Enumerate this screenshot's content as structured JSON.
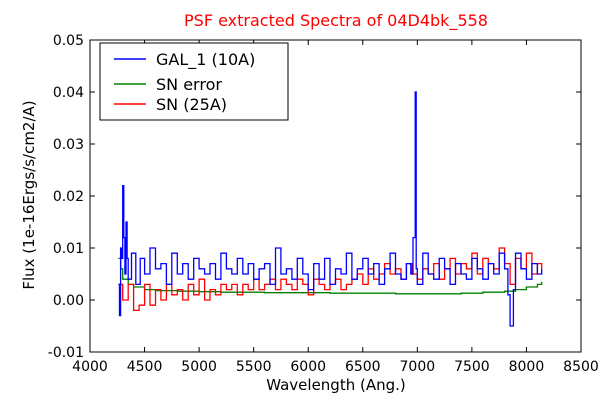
{
  "chart_data": {
    "type": "line",
    "title": "PSF extracted Spectra of 04D4bk_558",
    "title_color": "#ff0000",
    "xlabel": "Wavelength (Ang.)",
    "ylabel": "Flux (1e-16Ergs/s/cm2/A)",
    "xlim": [
      4000,
      8500
    ],
    "ylim": [
      -0.01,
      0.05
    ],
    "x_ticks": [
      4000,
      4500,
      5000,
      5500,
      6000,
      6500,
      7000,
      7500,
      8000,
      8500
    ],
    "y_ticks": [
      -0.01,
      0.0,
      0.01,
      0.02,
      0.03,
      0.04,
      0.05
    ],
    "x_tick_labels": [
      "4000",
      "4500",
      "5000",
      "5500",
      "6000",
      "6500",
      "7000",
      "7500",
      "8000",
      "8500"
    ],
    "y_tick_labels": [
      "-0.01",
      "0.00",
      "0.01",
      "0.02",
      "0.03",
      "0.04",
      "0.05"
    ],
    "grid": false,
    "legend_position": "top-left",
    "series": [
      {
        "name": "GAL_1 (10A)",
        "color": "#0000ff",
        "x": [
          4260,
          4270,
          4280,
          4290,
          4300,
          4310,
          4320,
          4330,
          4340,
          4350,
          4380,
          4420,
          4460,
          4500,
          4550,
          4600,
          4650,
          4700,
          4750,
          4800,
          4850,
          4900,
          4950,
          5000,
          5050,
          5100,
          5150,
          5200,
          5250,
          5300,
          5350,
          5400,
          5450,
          5500,
          5550,
          5600,
          5650,
          5700,
          5750,
          5800,
          5850,
          5900,
          5950,
          6000,
          6050,
          6100,
          6150,
          6200,
          6250,
          6300,
          6350,
          6400,
          6450,
          6500,
          6550,
          6600,
          6650,
          6700,
          6750,
          6800,
          6850,
          6900,
          6940,
          6960,
          6980,
          6990,
          7000,
          7050,
          7100,
          7150,
          7200,
          7250,
          7300,
          7350,
          7400,
          7450,
          7500,
          7550,
          7600,
          7650,
          7700,
          7750,
          7800,
          7830,
          7850,
          7880,
          7900,
          7950,
          8000,
          8050,
          8100,
          8140
        ],
        "y": [
          0.003,
          -0.003,
          0.01,
          0.008,
          0.022,
          0.012,
          0.005,
          0.015,
          0.008,
          0.004,
          0.009,
          0.003,
          0.008,
          0.005,
          0.01,
          0.006,
          0.007,
          0.003,
          0.009,
          0.005,
          0.007,
          0.004,
          0.008,
          0.006,
          0.005,
          0.007,
          0.004,
          0.009,
          0.006,
          0.005,
          0.008,
          0.005,
          0.007,
          0.004,
          0.006,
          0.007,
          0.003,
          0.01,
          0.005,
          0.006,
          0.004,
          0.008,
          0.005,
          0.002,
          0.007,
          0.004,
          0.008,
          0.003,
          0.006,
          0.005,
          0.009,
          0.004,
          0.006,
          0.008,
          0.005,
          0.007,
          0.003,
          0.006,
          0.009,
          0.005,
          0.004,
          0.007,
          0.005,
          0.012,
          0.04,
          0.006,
          0.003,
          0.009,
          0.005,
          0.004,
          0.008,
          0.006,
          0.003,
          0.007,
          0.005,
          0.004,
          0.008,
          0.006,
          0.004,
          0.007,
          0.005,
          0.009,
          0.006,
          0.001,
          -0.005,
          0.002,
          0.009,
          0.006,
          0.004,
          0.007,
          0.005,
          0.006
        ]
      },
      {
        "name": "SN error",
        "color": "#008000",
        "x": [
          4260,
          4280,
          4300,
          4350,
          4400,
          4500,
          4600,
          4800,
          5000,
          5200,
          5400,
          5600,
          5800,
          6000,
          6200,
          6400,
          6600,
          6800,
          7000,
          7200,
          7400,
          7600,
          7800,
          7900,
          8000,
          8100,
          8140
        ],
        "y": [
          0.008,
          0.006,
          0.004,
          0.003,
          0.0025,
          0.002,
          0.0018,
          0.0017,
          0.0016,
          0.0015,
          0.0015,
          0.0014,
          0.0014,
          0.0014,
          0.0013,
          0.0013,
          0.0013,
          0.0012,
          0.0012,
          0.0012,
          0.0013,
          0.0015,
          0.0017,
          0.002,
          0.0025,
          0.003,
          0.0035
        ]
      },
      {
        "name": "SN (25A)",
        "color": "#ff0000",
        "x": [
          4260,
          4300,
          4350,
          4400,
          4450,
          4500,
          4550,
          4600,
          4650,
          4700,
          4750,
          4800,
          4850,
          4900,
          4950,
          5000,
          5050,
          5100,
          5150,
          5200,
          5250,
          5300,
          5350,
          5400,
          5450,
          5500,
          5550,
          5600,
          5650,
          5700,
          5750,
          5800,
          5850,
          5900,
          5950,
          6000,
          6050,
          6100,
          6150,
          6200,
          6250,
          6300,
          6350,
          6400,
          6450,
          6500,
          6550,
          6600,
          6650,
          6700,
          6750,
          6800,
          6850,
          6900,
          6950,
          7000,
          7050,
          7100,
          7150,
          7200,
          7250,
          7300,
          7350,
          7400,
          7450,
          7500,
          7550,
          7600,
          7650,
          7700,
          7750,
          7800,
          7850,
          7900,
          7950,
          8000,
          8050,
          8100,
          8140
        ],
        "y": [
          0.003,
          0.0,
          0.003,
          -0.002,
          -0.001,
          0.003,
          -0.001,
          0.002,
          0.0,
          0.003,
          0.001,
          0.002,
          0.0,
          0.003,
          0.001,
          0.004,
          0.0,
          0.002,
          0.001,
          0.003,
          0.002,
          0.003,
          0.001,
          0.003,
          0.002,
          0.004,
          0.002,
          0.003,
          0.004,
          0.002,
          0.004,
          0.003,
          0.002,
          0.004,
          0.003,
          0.001,
          0.004,
          0.003,
          0.002,
          0.003,
          0.004,
          0.002,
          0.003,
          0.004,
          0.005,
          0.003,
          0.006,
          0.004,
          0.005,
          0.007,
          0.005,
          0.006,
          0.004,
          0.007,
          0.005,
          0.004,
          0.006,
          0.005,
          0.007,
          0.004,
          0.006,
          0.008,
          0.005,
          0.007,
          0.006,
          0.009,
          0.005,
          0.008,
          0.007,
          0.006,
          0.01,
          0.007,
          0.003,
          0.008,
          0.006,
          0.009,
          0.005,
          0.007,
          0.006
        ]
      }
    ]
  }
}
